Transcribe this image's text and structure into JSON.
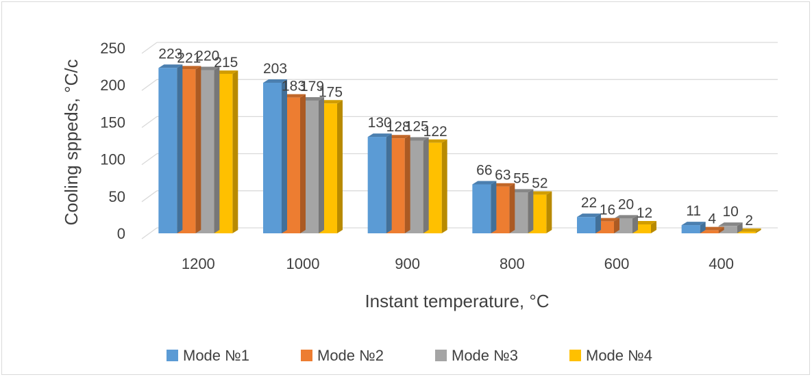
{
  "chart_data": {
    "type": "bar",
    "title": "",
    "xlabel": "Instant temperature, °C",
    "ylabel": "Cooling sppeds, °C/c",
    "categories": [
      "1200",
      "1000",
      "900",
      "800",
      "600",
      "400"
    ],
    "ylim": [
      0,
      250
    ],
    "yticks": [
      "0",
      "50",
      "100",
      "150",
      "200",
      "250"
    ],
    "grid": true,
    "legend_position": "bottom",
    "series": [
      {
        "name": "Mode №1",
        "color": "#5b9bd5",
        "values": [
          223,
          203,
          130,
          66,
          22,
          11
        ]
      },
      {
        "name": "Mode №2",
        "color": "#ed7d31",
        "values": [
          221,
          183,
          128,
          63,
          16,
          4
        ]
      },
      {
        "name": "Mode №3",
        "color": "#a5a5a5",
        "values": [
          220,
          179,
          125,
          55,
          20,
          10
        ]
      },
      {
        "name": "Mode №4",
        "color": "#ffc000",
        "values": [
          215,
          175,
          122,
          52,
          12,
          2
        ]
      }
    ]
  }
}
